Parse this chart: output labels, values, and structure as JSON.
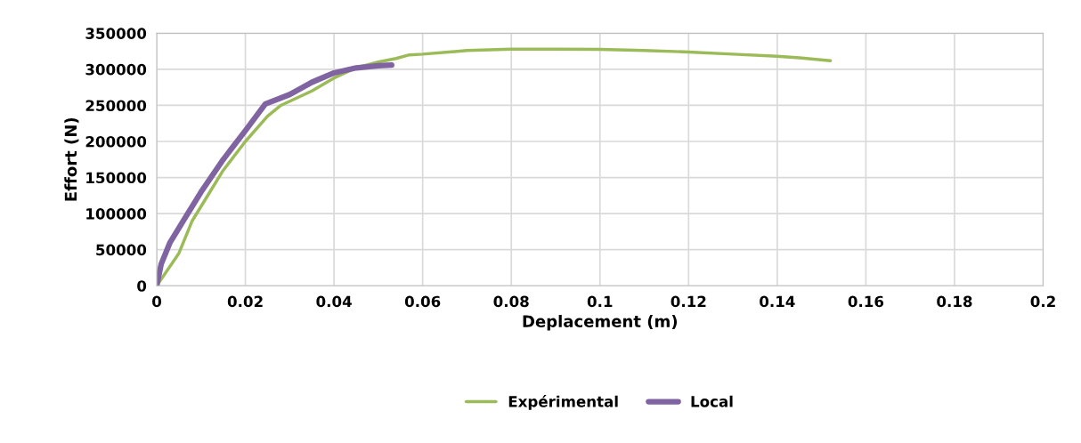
{
  "chart_data": {
    "type": "line",
    "xlabel": "Deplacement (m)",
    "ylabel": "Effort (N)",
    "xlim": [
      0,
      0.2
    ],
    "xticks": [
      0,
      0.02,
      0.04,
      0.06,
      0.08,
      0.1,
      0.12,
      0.14,
      0.16,
      0.18,
      0.2
    ],
    "ylim": [
      0,
      350000
    ],
    "yticks": [
      0,
      50000,
      100000,
      150000,
      200000,
      250000,
      300000,
      350000
    ],
    "grid": true,
    "legend": "bottom",
    "series": [
      {
        "name": "Expérimental",
        "color": "#9bbb59",
        "x": [
          0,
          0.005,
          0.008,
          0.012,
          0.015,
          0.02,
          0.025,
          0.028,
          0.035,
          0.04,
          0.045,
          0.05,
          0.054,
          0.057,
          0.06,
          0.07,
          0.08,
          0.09,
          0.1,
          0.11,
          0.12,
          0.13,
          0.14,
          0.145,
          0.152
        ],
        "values": [
          0,
          45000,
          90000,
          130000,
          160000,
          200000,
          235000,
          250000,
          270000,
          288000,
          302000,
          310000,
          315000,
          320000,
          321000,
          326000,
          328000,
          328000,
          327500,
          326000,
          324000,
          321000,
          318000,
          316000,
          312000
        ]
      },
      {
        "name": "Local",
        "color": "#8064a2",
        "x": [
          0,
          0.001,
          0.003,
          0.006,
          0.01,
          0.015,
          0.02,
          0.0245,
          0.03,
          0.035,
          0.04,
          0.045,
          0.05,
          0.053
        ],
        "values": [
          0,
          30000,
          60000,
          90000,
          130000,
          175000,
          215000,
          252000,
          265000,
          282000,
          295000,
          302000,
          305000,
          306000
        ]
      }
    ]
  }
}
